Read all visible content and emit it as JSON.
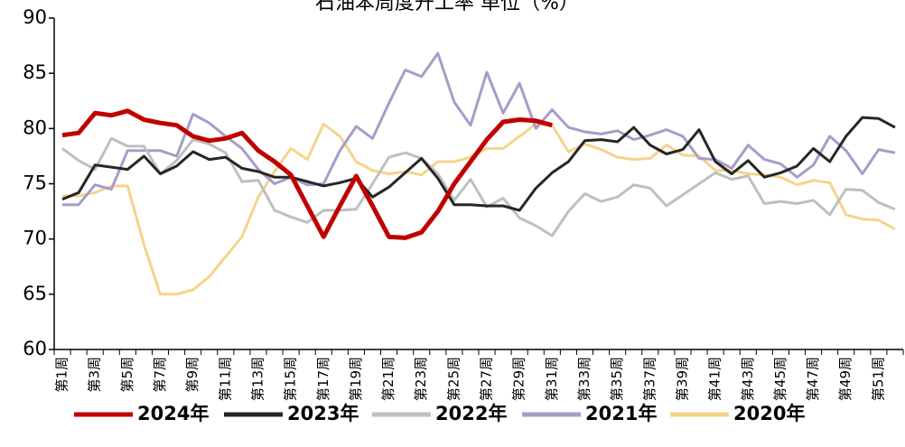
{
  "chart_data": {
    "type": "line",
    "title": "石油苯周度开工率 单位（%）",
    "categories": [
      "第1周",
      null,
      "第3周",
      null,
      "第5周",
      null,
      "第7周",
      null,
      "第9周",
      null,
      "第11周",
      null,
      "第13周",
      null,
      "第15周",
      null,
      "第17周",
      null,
      "第19周",
      null,
      "第21周",
      null,
      "第23周",
      null,
      "第25周",
      null,
      "第27周",
      null,
      "第29周",
      null,
      "第31周",
      null,
      "第33周",
      null,
      "第35周",
      null,
      "第37周",
      null,
      "第39周",
      null,
      "第41周",
      null,
      "第43周",
      null,
      "第45周",
      null,
      "第47周",
      null,
      "第49周",
      null,
      "第51周",
      null
    ],
    "ylim": [
      60,
      90
    ],
    "yticks": [
      60,
      65,
      70,
      75,
      80,
      85,
      90
    ],
    "legend": "bottom",
    "series": [
      {
        "name": "2024年",
        "color": "#c00000",
        "values": [
          79.4,
          79.6,
          81.4,
          81.2,
          81.6,
          80.8,
          80.5,
          80.3,
          79.3,
          78.9,
          79.1,
          79.6,
          78.0,
          77.0,
          75.8,
          73.0,
          70.2,
          73.0,
          75.7,
          73.0,
          70.2,
          70.1,
          70.6,
          72.5,
          75.0,
          77.0,
          79.0,
          80.6,
          80.8,
          80.7,
          80.3,
          null,
          null,
          null,
          null,
          null,
          null,
          null,
          null,
          null,
          null,
          null,
          null,
          null,
          null,
          null,
          null,
          null,
          null,
          null,
          null,
          null
        ]
      },
      {
        "name": "2023年",
        "color": "#262626",
        "values": [
          73.6,
          74.2,
          76.7,
          76.5,
          76.3,
          77.5,
          75.9,
          76.6,
          77.9,
          77.2,
          77.4,
          76.4,
          76.1,
          75.6,
          75.6,
          75.2,
          74.8,
          75.1,
          75.5,
          73.8,
          74.7,
          76.0,
          77.3,
          75.5,
          73.1,
          73.1,
          73.0,
          73.0,
          72.6,
          74.6,
          76.0,
          77.0,
          78.9,
          79.0,
          78.8,
          80.1,
          78.5,
          77.7,
          78.1,
          79.9,
          77.0,
          75.9,
          77.1,
          75.6,
          76.0,
          76.6,
          78.2,
          77.0,
          79.3,
          81.0,
          80.9,
          80.1
        ]
      },
      {
        "name": "2022年",
        "color": "#bfbfbf",
        "values": [
          78.2,
          77.1,
          76.3,
          79.1,
          78.4,
          78.4,
          75.9,
          77.1,
          79.0,
          78.6,
          77.8,
          75.2,
          75.3,
          72.6,
          72.0,
          71.5,
          72.6,
          72.6,
          72.7,
          75.0,
          77.4,
          77.8,
          77.3,
          75.9,
          73.5,
          75.4,
          72.9,
          73.7,
          71.9,
          71.2,
          70.3,
          72.5,
          74.1,
          73.4,
          73.8,
          74.9,
          74.6,
          73.0,
          74.0,
          75.0,
          76.0,
          75.4,
          75.7,
          73.2,
          73.4,
          73.2,
          73.5,
          72.2,
          74.5,
          74.4,
          73.3,
          72.7
        ]
      },
      {
        "name": "2021年",
        "color": "#a99bc8",
        "values": [
          73.1,
          73.1,
          74.9,
          74.5,
          78.0,
          78.0,
          78.0,
          77.5,
          81.3,
          80.5,
          79.3,
          78.2,
          76.3,
          75.0,
          75.6,
          74.9,
          75.0,
          78.0,
          80.2,
          79.1,
          82.3,
          85.3,
          84.7,
          86.8,
          82.4,
          80.3,
          85.1,
          81.4,
          84.1,
          80.0,
          81.7,
          80.1,
          79.7,
          79.5,
          79.8,
          79.0,
          79.4,
          79.9,
          79.3,
          77.3,
          77.2,
          76.4,
          78.5,
          77.2,
          76.8,
          75.6,
          76.7,
          79.3,
          78.0,
          75.9,
          78.1,
          77.8
        ]
      },
      {
        "name": "2020年",
        "color": "#f5d48a",
        "values": [
          73.9,
          73.9,
          74.2,
          74.8,
          74.8,
          69.5,
          65.0,
          65.0,
          65.4,
          66.6,
          68.4,
          70.2,
          73.8,
          76.1,
          78.2,
          77.2,
          80.4,
          79.3,
          77.0,
          76.2,
          75.9,
          76.1,
          75.8,
          77.0,
          77.0,
          77.4,
          78.2,
          78.2,
          79.3,
          80.4,
          80.3,
          77.9,
          78.6,
          78.1,
          77.4,
          77.2,
          77.3,
          78.5,
          77.6,
          77.5,
          76.2,
          76.2,
          75.9,
          75.8,
          75.6,
          74.9,
          75.3,
          75.1,
          72.2,
          71.8,
          71.7,
          70.9
        ]
      }
    ]
  }
}
